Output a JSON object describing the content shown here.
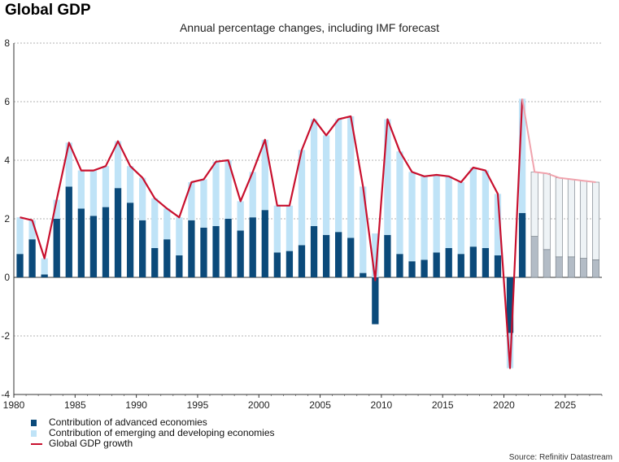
{
  "header": {
    "title": "Global GDP",
    "subtitle": "Annual percentage changes, including IMF forecast"
  },
  "legend": {
    "advanced": "Contribution of advanced economies",
    "emerging": "Contribution of emerging and developing economies",
    "growth": "Global GDP growth"
  },
  "source": "Source: Refinitiv Datastream",
  "colors": {
    "advanced": "#0b4a7a",
    "emerging": "#bfe3f7",
    "growth": "#c8102e",
    "forecast_line": "#f0a3ad",
    "forecast_adv": "#b3bcc6",
    "forecast_emg": "#eef3f6"
  },
  "chart_data": {
    "type": "bar",
    "title": "Global GDP",
    "subtitle": "Annual percentage changes, including IMF forecast",
    "xlabel": "",
    "ylabel": "",
    "xlim": [
      1980,
      2028
    ],
    "ylim": [
      -4,
      8
    ],
    "yticks": [
      "-4",
      "-2",
      "0",
      "2",
      "4",
      "6",
      "8"
    ],
    "xticks": [
      "1980",
      "1985",
      "1990",
      "1995",
      "2000",
      "2005",
      "2010",
      "2015",
      "2020",
      "2025"
    ],
    "grid": true,
    "legend_position": "bottom-left",
    "forecast_from": 2022,
    "years": [
      1980,
      1981,
      1982,
      1983,
      1984,
      1985,
      1986,
      1987,
      1988,
      1989,
      1990,
      1991,
      1992,
      1993,
      1994,
      1995,
      1996,
      1997,
      1998,
      1999,
      2000,
      2001,
      2002,
      2003,
      2004,
      2005,
      2006,
      2007,
      2008,
      2009,
      2010,
      2011,
      2012,
      2013,
      2014,
      2015,
      2016,
      2017,
      2018,
      2019,
      2020,
      2021,
      2022,
      2023,
      2024,
      2025,
      2026,
      2027
    ],
    "series": [
      {
        "name": "Contribution of advanced economies",
        "values": [
          0.8,
          1.3,
          0.1,
          2.0,
          3.1,
          2.35,
          2.1,
          2.4,
          3.05,
          2.55,
          1.95,
          1.0,
          1.3,
          0.75,
          1.95,
          1.7,
          1.75,
          2.0,
          1.6,
          2.05,
          2.3,
          0.85,
          0.9,
          1.1,
          1.75,
          1.45,
          1.55,
          1.35,
          0.15,
          -1.6,
          1.45,
          0.8,
          0.55,
          0.6,
          0.85,
          1.0,
          0.8,
          1.05,
          1.0,
          0.75,
          -1.9,
          2.2,
          1.4,
          0.95,
          0.7,
          0.7,
          0.65,
          0.6
        ]
      },
      {
        "name": "Contribution of emerging and developing economies",
        "values": [
          1.25,
          0.65,
          0.55,
          0.65,
          1.5,
          1.3,
          1.55,
          1.4,
          1.6,
          1.25,
          1.45,
          1.7,
          1.05,
          1.3,
          1.3,
          1.65,
          2.2,
          2.0,
          1.0,
          1.55,
          2.4,
          1.6,
          1.55,
          3.25,
          3.65,
          3.4,
          3.85,
          4.15,
          2.95,
          1.5,
          3.95,
          3.5,
          3.05,
          2.85,
          2.65,
          2.45,
          2.45,
          2.7,
          2.65,
          2.1,
          -1.2,
          3.9,
          2.2,
          2.6,
          2.7,
          2.65,
          2.65,
          2.65
        ]
      },
      {
        "name": "Global GDP growth",
        "values": [
          2.05,
          1.95,
          0.65,
          2.65,
          4.6,
          3.65,
          3.65,
          3.8,
          4.65,
          3.8,
          3.4,
          2.7,
          2.35,
          2.05,
          3.25,
          3.35,
          3.95,
          4.0,
          2.6,
          3.6,
          4.7,
          2.45,
          2.45,
          4.35,
          5.4,
          4.85,
          5.4,
          5.5,
          3.1,
          -0.1,
          5.4,
          4.3,
          3.6,
          3.45,
          3.5,
          3.45,
          3.25,
          3.75,
          3.65,
          2.85,
          -3.1,
          6.1,
          3.6,
          3.55,
          3.4,
          3.35,
          3.3,
          3.25
        ]
      }
    ]
  }
}
